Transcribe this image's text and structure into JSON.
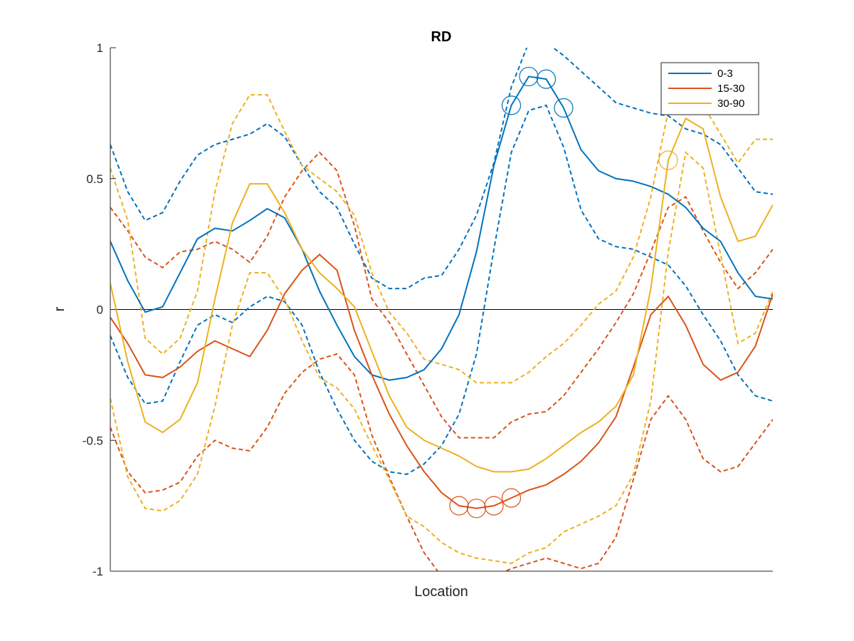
{
  "chart_data": {
    "type": "line",
    "title": "RD",
    "xlabel": "Location",
    "ylabel": "r",
    "ylim": [
      -1,
      1
    ],
    "xlim": [
      1,
      39
    ],
    "yticks": [
      -1,
      -0.5,
      0,
      0.5,
      1
    ],
    "ytick_labels": [
      "-1",
      "-0.5",
      "0",
      "0.5",
      "1"
    ],
    "xtick_labels": [],
    "zero_line": true,
    "grid": false,
    "legend_position": "top-right",
    "x": [
      1,
      2,
      3,
      4,
      5,
      6,
      7,
      8,
      9,
      10,
      11,
      12,
      13,
      14,
      15,
      16,
      17,
      18,
      19,
      20,
      21,
      22,
      23,
      24,
      25,
      26,
      27,
      28,
      29,
      30,
      31,
      32,
      33,
      34,
      35,
      36,
      37,
      38,
      39
    ],
    "series": [
      {
        "name": "0-3",
        "color": "#0072BD",
        "values": [
          0.26,
          0.11,
          -0.01,
          0.01,
          0.14,
          0.27,
          0.31,
          0.3,
          0.34,
          0.385,
          0.35,
          0.23,
          0.07,
          -0.06,
          -0.18,
          -0.25,
          -0.27,
          -0.26,
          -0.23,
          -0.15,
          -0.02,
          0.22,
          0.55,
          0.78,
          0.89,
          0.88,
          0.77,
          0.61,
          0.53,
          0.5,
          0.49,
          0.47,
          0.44,
          0.39,
          0.31,
          0.26,
          0.14,
          0.05,
          0.04
        ],
        "upper": [
          0.63,
          0.45,
          0.34,
          0.37,
          0.49,
          0.59,
          0.63,
          0.65,
          0.67,
          0.71,
          0.66,
          0.55,
          0.45,
          0.39,
          0.25,
          0.12,
          0.08,
          0.08,
          0.12,
          0.13,
          0.23,
          0.36,
          0.56,
          0.85,
          1.02,
          1.02,
          0.97,
          0.91,
          0.85,
          0.79,
          0.77,
          0.75,
          0.74,
          0.69,
          0.67,
          0.63,
          0.54,
          0.45,
          0.44
        ],
        "lower": [
          -0.1,
          -0.26,
          -0.36,
          -0.35,
          -0.2,
          -0.06,
          -0.02,
          -0.05,
          0.01,
          0.05,
          0.03,
          -0.06,
          -0.24,
          -0.38,
          -0.5,
          -0.58,
          -0.62,
          -0.63,
          -0.59,
          -0.52,
          -0.4,
          -0.17,
          0.23,
          0.6,
          0.76,
          0.78,
          0.62,
          0.38,
          0.27,
          0.24,
          0.23,
          0.2,
          0.17,
          0.09,
          -0.02,
          -0.12,
          -0.25,
          -0.33,
          -0.35
        ]
      },
      {
        "name": "15-30",
        "color": "#D95319",
        "values": [
          -0.03,
          -0.13,
          -0.25,
          -0.26,
          -0.22,
          -0.16,
          -0.12,
          -0.15,
          -0.18,
          -0.08,
          0.06,
          0.15,
          0.21,
          0.15,
          -0.08,
          -0.25,
          -0.4,
          -0.52,
          -0.62,
          -0.7,
          -0.75,
          -0.76,
          -0.75,
          -0.72,
          -0.69,
          -0.67,
          -0.63,
          -0.58,
          -0.51,
          -0.41,
          -0.22,
          -0.02,
          0.05,
          -0.06,
          -0.21,
          -0.27,
          -0.24,
          -0.14,
          0.06
        ],
        "upper": [
          0.39,
          0.3,
          0.2,
          0.16,
          0.22,
          0.23,
          0.26,
          0.23,
          0.18,
          0.28,
          0.43,
          0.53,
          0.6,
          0.53,
          0.32,
          0.04,
          -0.05,
          -0.17,
          -0.29,
          -0.41,
          -0.49,
          -0.49,
          -0.49,
          -0.43,
          -0.4,
          -0.39,
          -0.33,
          -0.24,
          -0.15,
          -0.05,
          0.06,
          0.22,
          0.39,
          0.43,
          0.3,
          0.18,
          0.08,
          0.14,
          0.23
        ],
        "lower": [
          -0.45,
          -0.62,
          -0.7,
          -0.69,
          -0.66,
          -0.56,
          -0.5,
          -0.53,
          -0.54,
          -0.45,
          -0.32,
          -0.24,
          -0.19,
          -0.17,
          -0.25,
          -0.48,
          -0.64,
          -0.79,
          -0.93,
          -1.02,
          -1.05,
          -1.03,
          -1.02,
          -0.99,
          -0.97,
          -0.95,
          -0.97,
          -0.99,
          -0.97,
          -0.87,
          -0.65,
          -0.42,
          -0.33,
          -0.42,
          -0.57,
          -0.62,
          -0.6,
          -0.51,
          -0.42
        ]
      },
      {
        "name": "30-90",
        "color": "#EDB120",
        "values": [
          0.1,
          -0.2,
          -0.43,
          -0.47,
          -0.42,
          -0.28,
          0.04,
          0.33,
          0.48,
          0.48,
          0.37,
          0.23,
          0.14,
          0.08,
          0.01,
          -0.16,
          -0.33,
          -0.45,
          -0.5,
          -0.53,
          -0.56,
          -0.6,
          -0.62,
          -0.62,
          -0.61,
          -0.57,
          -0.52,
          -0.47,
          -0.43,
          -0.37,
          -0.25,
          0.08,
          0.57,
          0.73,
          0.69,
          0.43,
          0.26,
          0.28,
          0.4
        ],
        "upper": [
          0.54,
          0.34,
          -0.11,
          -0.17,
          -0.11,
          0.07,
          0.45,
          0.71,
          0.82,
          0.82,
          0.68,
          0.55,
          0.5,
          0.45,
          0.36,
          0.14,
          -0.01,
          -0.09,
          -0.19,
          -0.21,
          -0.23,
          -0.28,
          -0.28,
          -0.28,
          -0.24,
          -0.18,
          -0.13,
          -0.06,
          0.02,
          0.07,
          0.2,
          0.43,
          0.76,
          0.81,
          0.78,
          0.67,
          0.56,
          0.65,
          0.65
        ],
        "lower": [
          -0.34,
          -0.64,
          -0.76,
          -0.77,
          -0.73,
          -0.63,
          -0.37,
          -0.06,
          0.14,
          0.14,
          0.04,
          -0.12,
          -0.26,
          -0.3,
          -0.38,
          -0.52,
          -0.65,
          -0.79,
          -0.83,
          -0.89,
          -0.93,
          -0.95,
          -0.96,
          -0.97,
          -0.93,
          -0.91,
          -0.85,
          -0.82,
          -0.79,
          -0.75,
          -0.63,
          -0.35,
          0.22,
          0.6,
          0.54,
          0.21,
          -0.13,
          -0.09,
          0.07
        ]
      }
    ],
    "markers": [
      {
        "series": "0-3",
        "x": [
          24,
          25,
          26,
          27
        ]
      },
      {
        "series": "15-30",
        "x": [
          21,
          22,
          23,
          24
        ]
      },
      {
        "series": "30-90",
        "x": [
          33
        ]
      }
    ]
  }
}
